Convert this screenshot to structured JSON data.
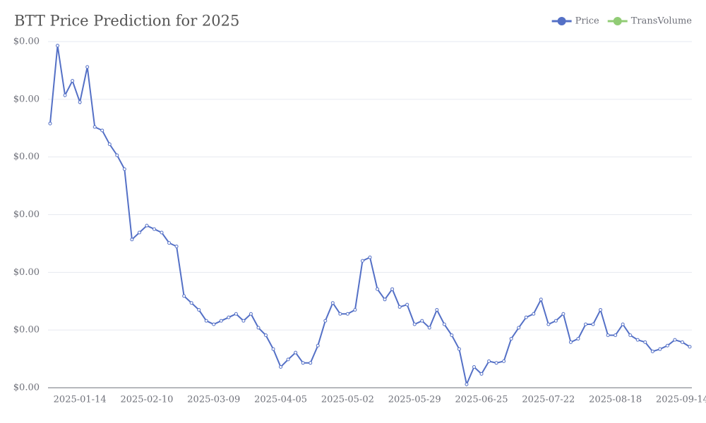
{
  "chart_data": {
    "type": "line",
    "title": "BTT Price Prediction for 2025",
    "categories": [
      null,
      null,
      null,
      null,
      "2025-01-14",
      null,
      null,
      null,
      null,
      null,
      null,
      null,
      null,
      "2025-02-10",
      null,
      null,
      null,
      null,
      null,
      null,
      null,
      null,
      "2025-03-09",
      null,
      null,
      null,
      null,
      null,
      null,
      null,
      null,
      "2025-04-05",
      null,
      null,
      null,
      null,
      null,
      null,
      null,
      null,
      "2025-05-02",
      null,
      null,
      null,
      null,
      null,
      null,
      null,
      null,
      "2025-05-29",
      null,
      null,
      null,
      null,
      null,
      null,
      null,
      null,
      "2025-06-25",
      null,
      null,
      null,
      null,
      null,
      null,
      null,
      null,
      "2025-07-22",
      null,
      null,
      null,
      null,
      null,
      null,
      null,
      null,
      "2025-08-18",
      null,
      null,
      null,
      null,
      null,
      null,
      null,
      null,
      "2025-09-14",
      null
    ],
    "series": [
      {
        "name": "Price",
        "color": "#5470c6",
        "values": [
          8.58e-07,
          9.93e-07,
          9.07e-07,
          9.32e-07,
          8.95e-07,
          9.56e-07,
          8.52e-07,
          8.46e-07,
          8.22e-07,
          8.03e-07,
          7.79e-07,
          6.57e-07,
          6.69e-07,
          6.81e-07,
          6.75e-07,
          6.69e-07,
          6.51e-07,
          6.45e-07,
          5.59e-07,
          5.47e-07,
          5.35e-07,
          5.16e-07,
          5.1e-07,
          5.16e-07,
          5.22e-07,
          5.28e-07,
          5.16e-07,
          5.28e-07,
          5.04e-07,
          4.91e-07,
          4.67e-07,
          4.36e-07,
          4.49e-07,
          4.61e-07,
          4.43e-07,
          4.43e-07,
          4.73e-07,
          5.16e-07,
          5.47e-07,
          5.28e-07,
          5.28e-07,
          5.35e-07,
          6.2e-07,
          6.26e-07,
          5.71e-07,
          5.53e-07,
          5.71e-07,
          5.4e-07,
          5.44e-07,
          5.1e-07,
          5.16e-07,
          5.04e-07,
          5.35e-07,
          5.1e-07,
          4.91e-07,
          4.67e-07,
          4.06e-07,
          4.36e-07,
          4.24e-07,
          4.46e-07,
          4.43e-07,
          4.46e-07,
          4.85e-07,
          5.04e-07,
          5.22e-07,
          5.28e-07,
          5.53e-07,
          5.1e-07,
          5.16e-07,
          5.28e-07,
          4.79e-07,
          4.85e-07,
          5.1e-07,
          5.1e-07,
          5.35e-07,
          4.91e-07,
          4.91e-07,
          5.1e-07,
          4.91e-07,
          4.83e-07,
          4.79e-07,
          4.63e-07,
          4.67e-07,
          4.73e-07,
          4.83e-07,
          4.79e-07,
          4.71e-07
        ]
      },
      {
        "name": "TransVolume",
        "color": "#91cc75"
      }
    ],
    "ylim": [
      4e-07,
      1e-06
    ],
    "yticks": [
      {
        "value": 4e-07,
        "label": "$0.00"
      },
      {
        "value": 5e-07,
        "label": "$0.00"
      },
      {
        "value": 6e-07,
        "label": "$0.00"
      },
      {
        "value": 7e-07,
        "label": "$0.00"
      },
      {
        "value": 8e-07,
        "label": "$0.00"
      },
      {
        "value": 9e-07,
        "label": "$0.00"
      },
      {
        "value": 1e-06,
        "label": "$0.00"
      }
    ],
    "grid": true,
    "legend": "top-right"
  }
}
